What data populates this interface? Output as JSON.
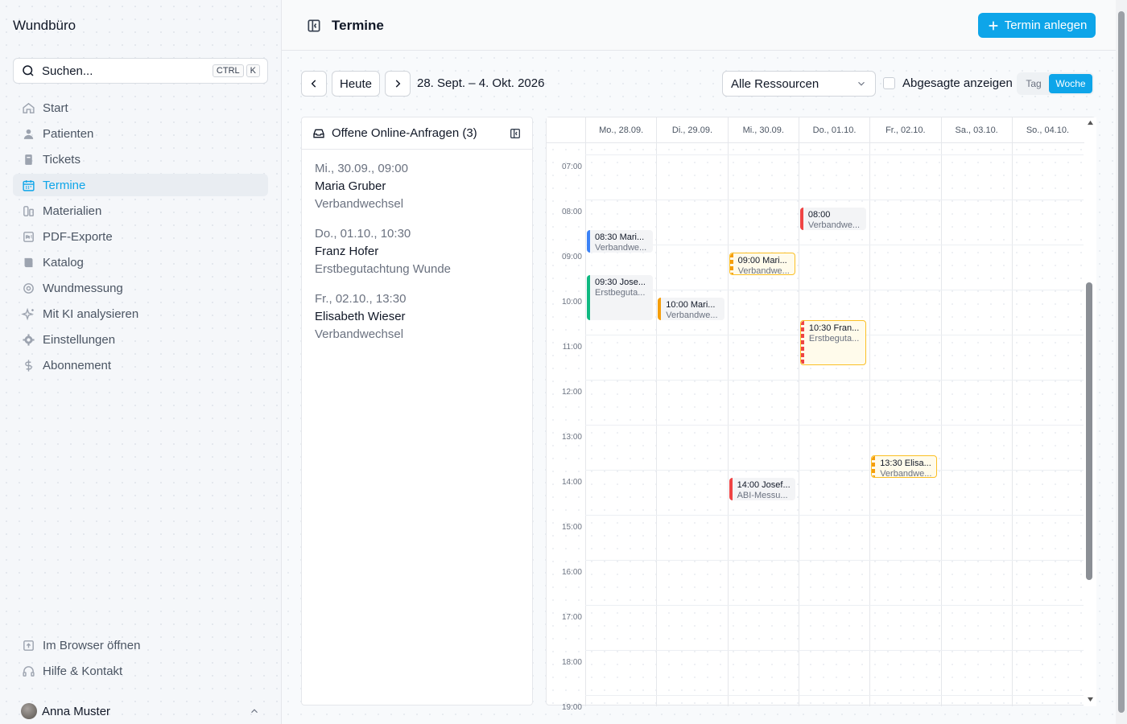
{
  "app": {
    "brand": "Wundbüro"
  },
  "search": {
    "placeholder": "Suchen...",
    "key1": "CTRL",
    "key2": "K"
  },
  "nav": {
    "items": [
      "Start",
      "Patienten",
      "Tickets",
      "Termine",
      "Materialien",
      "PDF-Exporte",
      "Katalog",
      "Wundmessung",
      "Mit KI analysieren",
      "Einstellungen",
      "Abonnement"
    ],
    "active": "Termine"
  },
  "nav_bottom": {
    "items": [
      "Im Browser öffnen",
      "Hilfe & Kontakt"
    ]
  },
  "user": {
    "name": "Anna Muster"
  },
  "header": {
    "title": "Termine",
    "new_button": "Termin anlegen"
  },
  "toolbar": {
    "today": "Heute",
    "range": "28. Sept. – 4. Okt. 2026",
    "resource": "Alle Ressourcen",
    "cancelled_label": "Abgesagte anzeigen",
    "view_day": "Tag",
    "view_week": "Woche",
    "active_view": "Woche"
  },
  "requests": {
    "title": "Offene Online-Anfragen (3)",
    "items": [
      {
        "date": "Mi., 30.09., 09:00",
        "name": "Maria Gruber",
        "type": "Verbandwechsel"
      },
      {
        "date": "Do., 01.10., 10:30",
        "name": "Franz Hofer",
        "type": "Erstbegutachtung Wunde"
      },
      {
        "date": "Fr., 02.10., 13:30",
        "name": "Elisabeth Wieser",
        "type": "Verbandwechsel"
      }
    ]
  },
  "calendar": {
    "days": [
      "Mo., 28.09.",
      "Di., 29.09.",
      "Mi., 30.09.",
      "Do., 01.10.",
      "Fr., 02.10.",
      "Sa., 03.10.",
      "So., 04.10."
    ],
    "hours": [
      "07:00",
      "08:00",
      "09:00",
      "10:00",
      "11:00",
      "12:00",
      "13:00",
      "14:00",
      "15:00",
      "16:00",
      "17:00",
      "18:00",
      "19:00"
    ],
    "events": [
      {
        "day": 0,
        "start": 8.5,
        "end": 9.0,
        "title": "08:30 Mari...",
        "sub": "Verbandwe...",
        "color": "#3b82f6",
        "pending": false
      },
      {
        "day": 0,
        "start": 9.5,
        "end": 10.5,
        "title": "09:30 Jose...",
        "sub": "Erstbeguta...",
        "color": "#10b981",
        "pending": false
      },
      {
        "day": 1,
        "start": 10.0,
        "end": 10.5,
        "title": "10:00 Mari...",
        "sub": "Verbandwe...",
        "color": "#f59e0b",
        "pending": false
      },
      {
        "day": 2,
        "start": 9.0,
        "end": 9.5,
        "title": "09:00 Mari...",
        "sub": "Verbandwe...",
        "color": "#f59e0b",
        "pending": true
      },
      {
        "day": 2,
        "start": 14.0,
        "end": 14.5,
        "title": "14:00 Josef...",
        "sub": "ABI-Messu...",
        "color": "#ef4444",
        "pending": false
      },
      {
        "day": 3,
        "start": 8.0,
        "end": 8.5,
        "title": "08:00",
        "sub": "Verbandwe...",
        "color": "#ef4444",
        "pending": false
      },
      {
        "day": 3,
        "start": 10.5,
        "end": 11.5,
        "title": "10:30 Fran...",
        "sub": "Erstbeguta...",
        "color": "#ef4444",
        "pending": true
      },
      {
        "day": 4,
        "start": 13.5,
        "end": 14.0,
        "title": "13:30 Elisa...",
        "sub": "Verbandwe...",
        "color": "#f59e0b",
        "pending": true
      }
    ]
  }
}
